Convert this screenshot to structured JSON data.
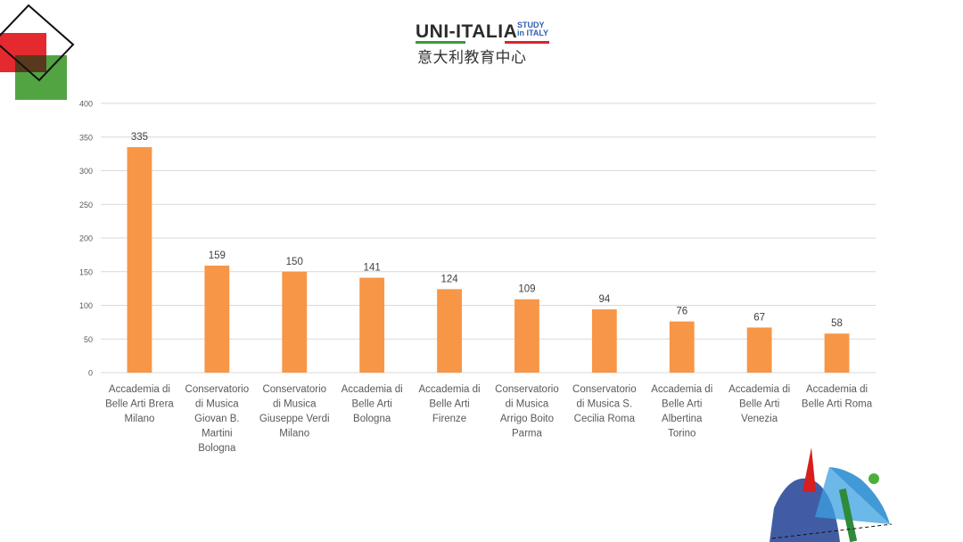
{
  "logo": {
    "main": "UNI-ITALIA",
    "study_line1": "STUDY",
    "study_line2": "in ITALY",
    "subtitle": "意大利教育中心"
  },
  "colors": {
    "bar": "#F79646",
    "grid": "#D9D9D9",
    "axis_text": "#595959",
    "brand_green": "#3A9A3A",
    "brand_red": "#D9262B",
    "brand_blue": "#2F5FAF"
  },
  "chart_data": {
    "type": "bar",
    "title": "",
    "xlabel": "",
    "ylabel": "",
    "ylim": [
      0,
      400
    ],
    "yticks": [
      0,
      50,
      100,
      150,
      200,
      250,
      300,
      350,
      400
    ],
    "grid": true,
    "categories": [
      [
        "Accademia di",
        "Belle Arti Brera",
        "Milano"
      ],
      [
        "Conservatorio",
        "di Musica",
        "Giovan B.",
        "Martini",
        "Bologna"
      ],
      [
        "Conservatorio",
        "di Musica",
        "Giuseppe Verdi",
        "Milano"
      ],
      [
        "Accademia di",
        "Belle Arti",
        "Bologna"
      ],
      [
        "Accademia di",
        "Belle Arti",
        "Firenze"
      ],
      [
        "Conservatorio",
        "di Musica",
        "Arrigo Boito",
        "Parma"
      ],
      [
        "Conservatorio",
        "di Musica S.",
        "Cecilia Roma"
      ],
      [
        "Accademia di",
        "Belle Arti",
        "Albertina",
        "Torino"
      ],
      [
        "Accademia di",
        "Belle Arti",
        "Venezia"
      ],
      [
        "Accademia di",
        "Belle Arti Roma"
      ]
    ],
    "values": [
      335,
      159,
      150,
      141,
      124,
      109,
      94,
      76,
      67,
      58
    ]
  }
}
